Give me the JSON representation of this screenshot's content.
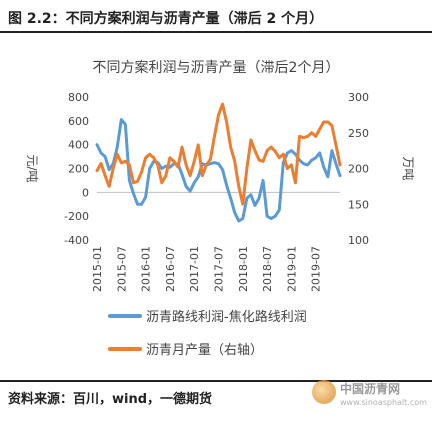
{
  "figure": {
    "caption": "图 2.2：不同方案利润与沥青产量（滞后 2 个月）",
    "source": "资料来源：百川，wind，一德期货"
  },
  "watermark": {
    "text": "中国沥青网",
    "url": "www.sinoasphalt.com"
  },
  "colors": {
    "blue": "#5B9BD5",
    "orange": "#ED7D31"
  },
  "chart_data": {
    "type": "line",
    "title": "不同方案利润与沥青产量（滞后2个月）",
    "left_axis": {
      "label": "元/吨",
      "ylim": [
        -400,
        800
      ],
      "ticks": [
        -400,
        -200,
        0,
        200,
        400,
        600,
        800
      ]
    },
    "right_axis": {
      "label": "万吨",
      "ylim": [
        100,
        300
      ],
      "ticks": [
        100,
        150,
        200,
        250,
        300
      ]
    },
    "x_tick_labels": [
      "2015-01",
      "2015-07",
      "2016-01",
      "2016-07",
      "2017-01",
      "2017-07",
      "2018-01",
      "2018-07",
      "2019-01",
      "2019-07"
    ],
    "x_start": "2015-01",
    "grid": false,
    "legend": "bottom",
    "series": [
      {
        "name": "沥青路线利润-焦化路线利润",
        "axis": "left",
        "values": [
          400,
          330,
          300,
          190,
          240,
          380,
          610,
          570,
          100,
          -10,
          -100,
          -100,
          -40,
          200,
          260,
          250,
          200,
          220,
          210,
          240,
          240,
          150,
          50,
          10,
          80,
          130,
          240,
          230,
          240,
          250,
          240,
          190,
          60,
          -50,
          -170,
          -240,
          -220,
          -50,
          -20,
          -110,
          -50,
          100,
          -200,
          -220,
          -200,
          -150,
          250,
          330,
          350,
          320,
          270,
          240,
          230,
          270,
          290,
          330,
          210,
          130,
          350,
          240,
          140
        ]
      },
      {
        "name": "沥青月产量（右轴）",
        "axis": "right",
        "values": [
          197,
          207,
          190,
          175,
          200,
          220,
          208,
          210,
          205,
          180,
          182,
          195,
          215,
          220,
          215,
          205,
          180,
          190,
          215,
          210,
          202,
          230,
          205,
          190,
          210,
          233,
          190,
          205,
          213,
          245,
          275,
          290,
          265,
          230,
          210,
          175,
          150,
          200,
          240,
          225,
          212,
          210,
          225,
          230,
          224,
          215,
          220,
          200,
          205,
          180,
          245,
          243,
          245,
          250,
          245,
          255,
          265,
          265,
          260,
          233,
          205
        ]
      }
    ]
  }
}
